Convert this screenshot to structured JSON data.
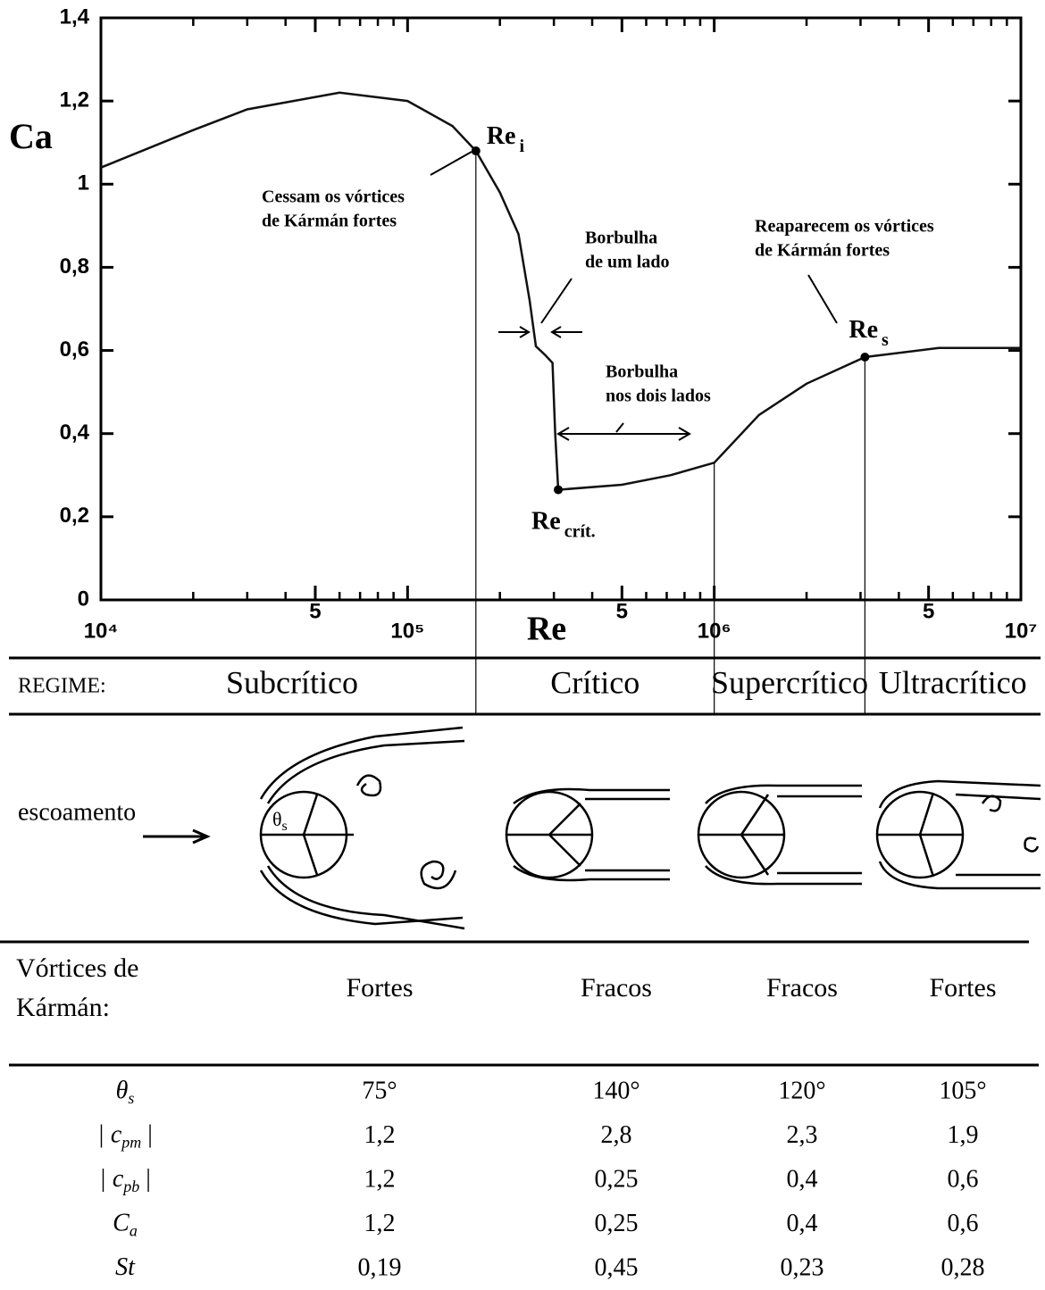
{
  "chart_data": {
    "type": "line",
    "x_label": "Re",
    "y_label": "Ca",
    "x": [
      10000,
      20000,
      30000,
      60000,
      100000,
      140000,
      167000,
      200000,
      230000,
      250000,
      262000,
      280000,
      297000,
      303000,
      310000,
      500000,
      720000,
      1000000,
      1400000,
      2000000,
      3100000,
      5400000,
      10000000
    ],
    "values": [
      1.04,
      1.13,
      1.18,
      1.22,
      1.2,
      1.14,
      1.08,
      0.98,
      0.88,
      0.72,
      0.61,
      0.59,
      0.57,
      0.4,
      0.265,
      0.277,
      0.3,
      0.33,
      0.445,
      0.52,
      0.584,
      0.606,
      0.606
    ],
    "color": "#111111",
    "log_x": true,
    "xlim": [
      10000,
      10000000
    ],
    "ylim": [
      0,
      1.4
    ],
    "xticks": [
      {
        "value": 10000,
        "label": "10⁴"
      },
      {
        "value": 50000,
        "label": "5"
      },
      {
        "value": 100000,
        "label": "10⁵"
      },
      {
        "value": 500000,
        "label": "5"
      },
      {
        "value": 1000000,
        "label": "10⁶"
      },
      {
        "value": 5000000,
        "label": "5"
      },
      {
        "value": 10000000,
        "label": "10⁷"
      }
    ],
    "xminorticks": [
      20000,
      30000,
      40000,
      60000,
      70000,
      80000,
      90000,
      200000,
      300000,
      400000,
      600000,
      700000,
      800000,
      900000,
      2000000,
      3000000,
      4000000,
      6000000,
      7000000,
      8000000,
      9000000
    ],
    "yticks": [
      0,
      {
        "value": 0.2,
        "label": "0,2"
      },
      {
        "value": 0.4,
        "label": "0,4"
      },
      {
        "value": 0.6,
        "label": "0,6"
      },
      {
        "value": 0.8,
        "label": "0,8"
      },
      1,
      {
        "value": 1.2,
        "label": "1,2"
      },
      {
        "value": 1.4,
        "label": "1,4"
      }
    ],
    "points": [
      {
        "label": "Re",
        "sub": "i",
        "x": 167000,
        "y": 1.08
      },
      {
        "label": "Re",
        "sub": "crít.",
        "x": 310000,
        "y": 0.265
      },
      {
        "label": "Re",
        "sub": "s",
        "x": 3100000,
        "y": 0.584
      }
    ],
    "annotations": [
      {
        "lines": [
          "Cessam os vórtices",
          "de Kármán fortes"
        ]
      },
      {
        "lines": [
          "Borbulha",
          "de um lado"
        ]
      },
      {
        "lines": [
          "Borbulha",
          "nos dois lados"
        ]
      },
      {
        "lines": [
          "Reaparecem os vórtices",
          "de Kármán fortes"
        ]
      }
    ]
  },
  "table": {
    "regime_label": "REGIME:",
    "regimes": [
      "Subcrítico",
      "Crítico",
      "Supercrítico",
      "Ultracrítico"
    ],
    "flow_label": "escoamento",
    "angle_label": {
      "main": "θ",
      "sub": "s"
    },
    "vortex_label": [
      "Vórtices de",
      "Kármán:"
    ],
    "vortex": [
      "Fortes",
      "Fracos",
      "Fracos",
      "Fortes"
    ],
    "rows": [
      {
        "head": {
          "main": "θ",
          "sub": "s",
          "end": ""
        },
        "cells": [
          "75°",
          "140°",
          "120°",
          "105°"
        ]
      },
      {
        "head": {
          "main": "| c",
          "sub": "pm",
          "end": " |"
        },
        "cells": [
          "1,2",
          "2,8",
          "2,3",
          "1,9"
        ]
      },
      {
        "head": {
          "main": "| c",
          "sub": "pb",
          "end": " |"
        },
        "cells": [
          "1,2",
          "0,25",
          "0,4",
          "0,6"
        ]
      },
      {
        "head": {
          "main": "C",
          "sub": "a",
          "end": ""
        },
        "cells": [
          "1,2",
          "0,25",
          "0,4",
          "0,6"
        ]
      },
      {
        "head": {
          "main": "St",
          "sub": "",
          "end": ""
        },
        "cells": [
          "0,19",
          "0,45",
          "0,23",
          "0,28"
        ]
      }
    ]
  }
}
